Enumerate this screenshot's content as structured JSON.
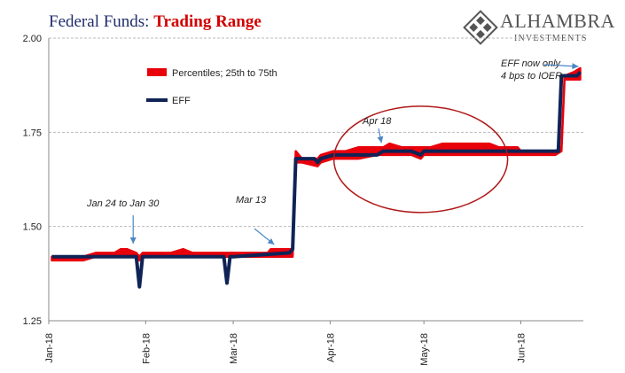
{
  "header": {
    "title_part1": "Federal Funds: ",
    "title_part2": "Trading Range"
  },
  "logo": {
    "name": "ALHAMBRA",
    "subtitle": "INVESTMENTS"
  },
  "colors": {
    "band": "#e8000b",
    "eff": "#0f2356",
    "annotation": "#4a86c5",
    "circle": "#b01818",
    "grid": "#bbbbbb",
    "title_primary": "#1f2d6b",
    "title_accent": "#d10000"
  },
  "chart_data": {
    "type": "line",
    "title": "Federal Funds: Trading Range",
    "xlabel": "",
    "ylabel": "",
    "ylim": [
      1.25,
      2.0
    ],
    "yticks": [
      "1.25",
      "1.50",
      "1.75",
      "2.00"
    ],
    "xtick_labels": [
      "Jan-18",
      "Feb-18",
      "Mar-18",
      "Apr-18",
      "May-18",
      "Jun-18"
    ],
    "xtick_dates": [
      "2018-01-01",
      "2018-02-01",
      "2018-03-01",
      "2018-04-01",
      "2018-05-01",
      "2018-06-01"
    ],
    "x_range": [
      "2018-01-01",
      "2018-06-21"
    ],
    "grid": "horizontal dashed",
    "legend_position": "top-left",
    "series": [
      {
        "name": "Percentiles; 25th to 75th",
        "kind": "band",
        "x": [
          "2018-01-02",
          "2018-01-05",
          "2018-01-08",
          "2018-01-12",
          "2018-01-16",
          "2018-01-22",
          "2018-01-24",
          "2018-01-26",
          "2018-01-29",
          "2018-01-30",
          "2018-01-31",
          "2018-02-01",
          "2018-02-05",
          "2018-02-09",
          "2018-02-13",
          "2018-02-16",
          "2018-02-20",
          "2018-02-26",
          "2018-02-28",
          "2018-03-01",
          "2018-03-05",
          "2018-03-09",
          "2018-03-12",
          "2018-03-13",
          "2018-03-14",
          "2018-03-16",
          "2018-03-19",
          "2018-03-20",
          "2018-03-21",
          "2018-03-22",
          "2018-03-23",
          "2018-03-28",
          "2018-03-29",
          "2018-04-02",
          "2018-04-06",
          "2018-04-10",
          "2018-04-16",
          "2018-04-18",
          "2018-04-20",
          "2018-04-24",
          "2018-04-27",
          "2018-04-30",
          "2018-05-01",
          "2018-05-03",
          "2018-05-07",
          "2018-05-10",
          "2018-05-15",
          "2018-05-18",
          "2018-05-22",
          "2018-05-25",
          "2018-05-31",
          "2018-06-01",
          "2018-06-05",
          "2018-06-08",
          "2018-06-12",
          "2018-06-14",
          "2018-06-15",
          "2018-06-18",
          "2018-06-20"
        ],
        "low": [
          1.41,
          1.41,
          1.41,
          1.41,
          1.42,
          1.42,
          1.42,
          1.42,
          1.42,
          1.41,
          1.42,
          1.42,
          1.42,
          1.42,
          1.42,
          1.42,
          1.42,
          1.42,
          1.42,
          1.42,
          1.42,
          1.42,
          1.42,
          1.42,
          1.42,
          1.42,
          1.42,
          1.42,
          1.67,
          1.67,
          1.67,
          1.66,
          1.67,
          1.68,
          1.68,
          1.68,
          1.69,
          1.69,
          1.69,
          1.69,
          1.69,
          1.68,
          1.69,
          1.69,
          1.69,
          1.69,
          1.69,
          1.69,
          1.69,
          1.69,
          1.69,
          1.69,
          1.69,
          1.69,
          1.69,
          1.7,
          1.89,
          1.89,
          1.89
        ],
        "high": [
          1.42,
          1.42,
          1.42,
          1.42,
          1.43,
          1.43,
          1.44,
          1.44,
          1.43,
          1.42,
          1.43,
          1.43,
          1.43,
          1.43,
          1.44,
          1.43,
          1.43,
          1.43,
          1.43,
          1.43,
          1.43,
          1.43,
          1.43,
          1.44,
          1.44,
          1.44,
          1.44,
          1.44,
          1.7,
          1.69,
          1.68,
          1.68,
          1.69,
          1.7,
          1.7,
          1.71,
          1.71,
          1.71,
          1.72,
          1.71,
          1.71,
          1.71,
          1.71,
          1.71,
          1.72,
          1.72,
          1.72,
          1.72,
          1.72,
          1.71,
          1.71,
          1.7,
          1.7,
          1.7,
          1.7,
          1.71,
          1.9,
          1.91,
          1.92
        ]
      },
      {
        "name": "EFF",
        "kind": "line",
        "x": [
          "2018-01-02",
          "2018-01-29",
          "2018-01-30",
          "2018-01-31",
          "2018-02-01",
          "2018-02-26",
          "2018-02-27",
          "2018-02-28",
          "2018-03-01",
          "2018-03-19",
          "2018-03-20",
          "2018-03-21",
          "2018-03-22",
          "2018-03-27",
          "2018-03-28",
          "2018-03-29",
          "2018-04-02",
          "2018-04-16",
          "2018-04-18",
          "2018-04-27",
          "2018-04-30",
          "2018-05-01",
          "2018-05-31",
          "2018-06-12",
          "2018-06-13",
          "2018-06-14",
          "2018-06-19",
          "2018-06-20"
        ],
        "y": [
          1.42,
          1.42,
          1.34,
          1.42,
          1.42,
          1.42,
          1.35,
          1.42,
          1.42,
          1.43,
          1.44,
          1.68,
          1.68,
          1.68,
          1.67,
          1.68,
          1.69,
          1.69,
          1.7,
          1.7,
          1.69,
          1.7,
          1.7,
          1.7,
          1.7,
          1.9,
          1.9,
          1.91
        ]
      }
    ],
    "annotations": [
      {
        "text": "Jan 24 to Jan 30",
        "x": "2018-01-28",
        "y": 1.445
      },
      {
        "text": "Mar 13",
        "x": "2018-03-13",
        "y": 1.445
      },
      {
        "text": "Apr 18",
        "x": "2018-04-18",
        "y": 1.715
      },
      {
        "text_line1": "EFF now only",
        "text_line2": "4 bps to IOER",
        "x": "2018-06-20",
        "y": 1.92
      }
    ],
    "highlight_circle": {
      "center_x": "2018-04-30",
      "center_y": 1.69,
      "description": "red ellipse around Apr-May range"
    }
  }
}
